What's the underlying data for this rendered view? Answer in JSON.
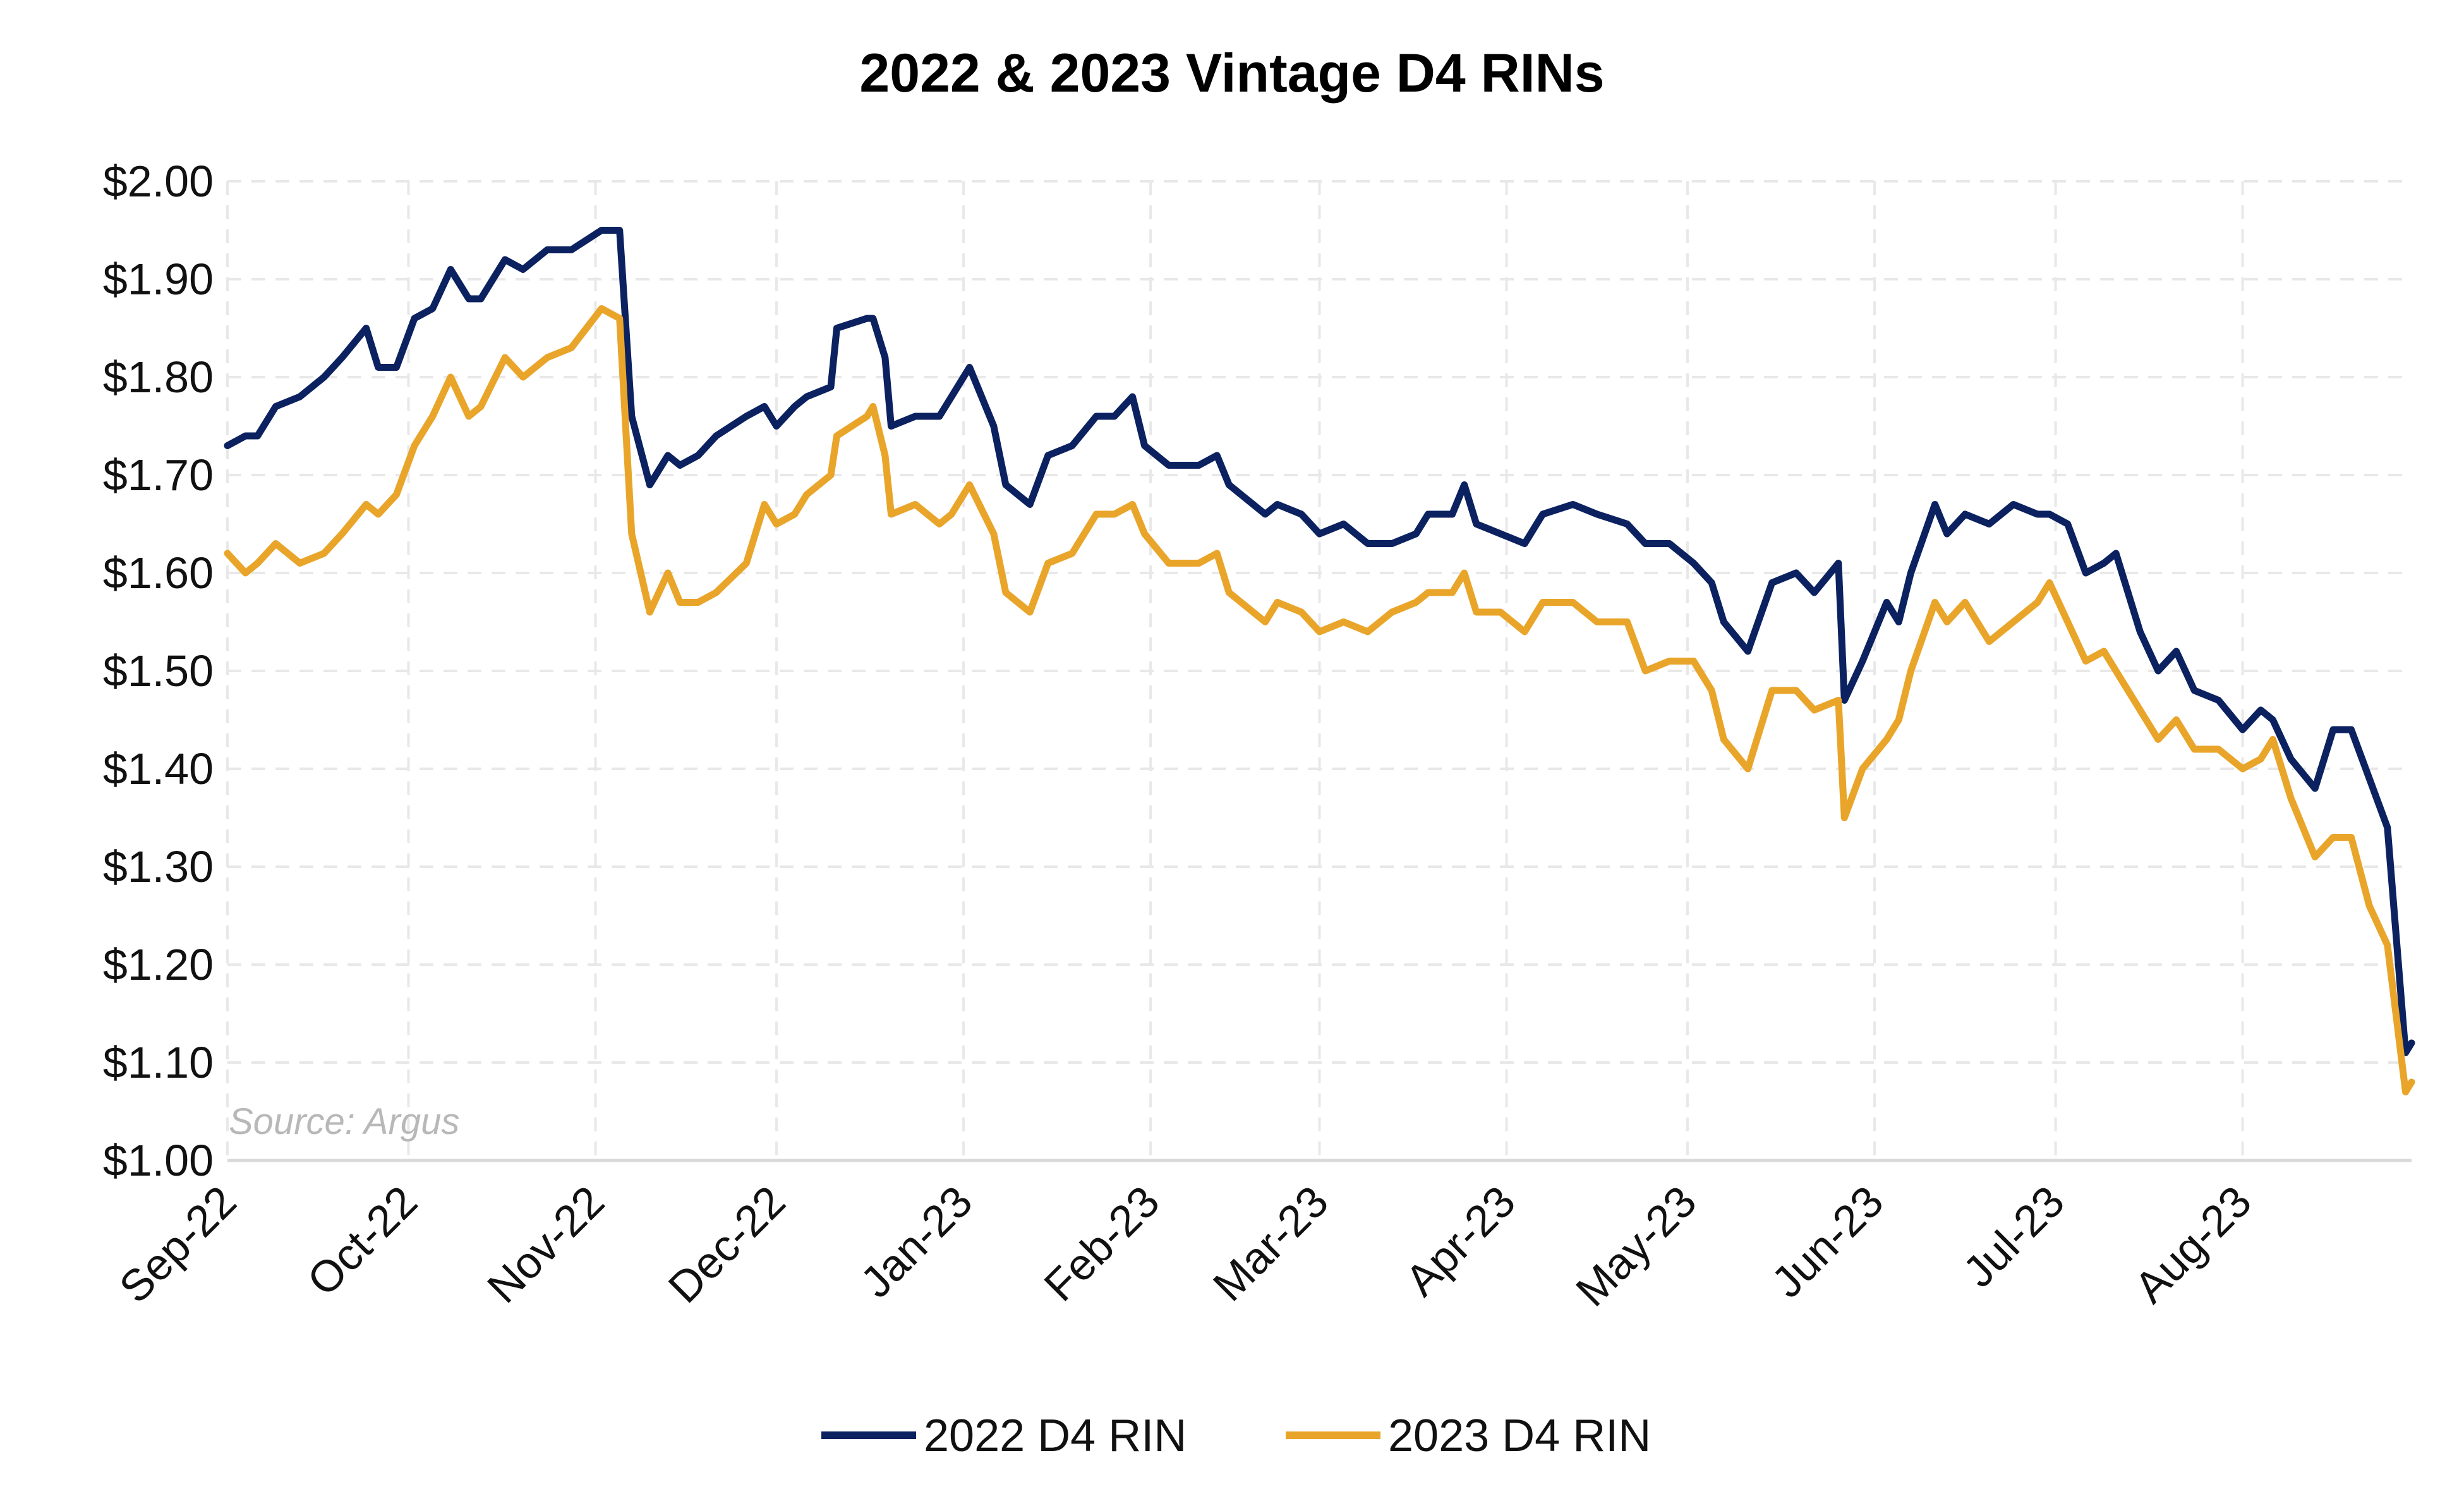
{
  "chart_data": {
    "type": "line",
    "title": "2022 & 2023 Vintage D4 RINs",
    "source_note": "Source: Argus",
    "xlabel": "",
    "ylabel": "",
    "ylim": [
      1.0,
      2.0
    ],
    "yticks": [
      "$1.00",
      "$1.10",
      "$1.20",
      "$1.30",
      "$1.40",
      "$1.50",
      "$1.60",
      "$1.70",
      "$1.80",
      "$1.90",
      "$2.00"
    ],
    "xticks": [
      {
        "date": "2022-09-01",
        "label": "Sep-22"
      },
      {
        "date": "2022-10-01",
        "label": "Oct-22"
      },
      {
        "date": "2022-11-01",
        "label": "Nov-22"
      },
      {
        "date": "2022-12-01",
        "label": "Dec-22"
      },
      {
        "date": "2023-01-01",
        "label": "Jan-23"
      },
      {
        "date": "2023-02-01",
        "label": "Feb-23"
      },
      {
        "date": "2023-03-01",
        "label": "Mar-23"
      },
      {
        "date": "2023-04-01",
        "label": "Apr-23"
      },
      {
        "date": "2023-05-01",
        "label": "May-23"
      },
      {
        "date": "2023-06-01",
        "label": "Jun-23"
      },
      {
        "date": "2023-07-01",
        "label": "Jul-23"
      },
      {
        "date": "2023-08-01",
        "label": "Aug-23"
      }
    ],
    "xlim": [
      "2022-09-01",
      "2023-08-29"
    ],
    "grid": true,
    "legend_position": "bottom",
    "x": [
      "2022-09-01",
      "2022-09-04",
      "2022-09-06",
      "2022-09-09",
      "2022-09-13",
      "2022-09-17",
      "2022-09-20",
      "2022-09-24",
      "2022-09-26",
      "2022-09-29",
      "2022-10-02",
      "2022-10-05",
      "2022-10-08",
      "2022-10-11",
      "2022-10-13",
      "2022-10-17",
      "2022-10-20",
      "2022-10-24",
      "2022-10-28",
      "2022-11-02",
      "2022-11-05",
      "2022-11-07",
      "2022-11-10",
      "2022-11-13",
      "2022-11-15",
      "2022-11-18",
      "2022-11-21",
      "2022-11-26",
      "2022-11-29",
      "2022-12-01",
      "2022-12-04",
      "2022-12-06",
      "2022-12-10",
      "2022-12-11",
      "2022-12-16",
      "2022-12-17",
      "2022-12-19",
      "2022-12-20",
      "2022-12-24",
      "2022-12-28",
      "2022-12-30",
      "2023-01-02",
      "2023-01-06",
      "2023-01-08",
      "2023-01-12",
      "2023-01-15",
      "2023-01-19",
      "2023-01-23",
      "2023-01-26",
      "2023-01-29",
      "2023-01-31",
      "2023-02-04",
      "2023-02-09",
      "2023-02-12",
      "2023-02-14",
      "2023-02-20",
      "2023-02-22",
      "2023-02-26",
      "2023-03-01",
      "2023-03-05",
      "2023-03-09",
      "2023-03-13",
      "2023-03-17",
      "2023-03-19",
      "2023-03-23",
      "2023-03-25",
      "2023-03-27",
      "2023-03-31",
      "2023-04-04",
      "2023-04-07",
      "2023-04-12",
      "2023-04-16",
      "2023-04-21",
      "2023-04-24",
      "2023-04-28",
      "2023-05-02",
      "2023-05-05",
      "2023-05-07",
      "2023-05-11",
      "2023-05-15",
      "2023-05-19",
      "2023-05-22",
      "2023-05-26",
      "2023-05-27",
      "2023-05-30",
      "2023-06-03",
      "2023-06-05",
      "2023-06-07",
      "2023-06-11",
      "2023-06-13",
      "2023-06-16",
      "2023-06-20",
      "2023-06-24",
      "2023-06-28",
      "2023-06-30",
      "2023-07-03",
      "2023-07-06",
      "2023-07-09",
      "2023-07-11",
      "2023-07-15",
      "2023-07-18",
      "2023-07-21",
      "2023-07-24",
      "2023-07-28",
      "2023-08-01",
      "2023-08-04",
      "2023-08-06",
      "2023-08-09",
      "2023-08-13",
      "2023-08-16",
      "2023-08-19",
      "2023-08-22",
      "2023-08-25",
      "2023-08-28",
      "2023-08-29"
    ],
    "series": [
      {
        "name": "2022 D4 RIN",
        "color": "#0b2160",
        "values": [
          1.73,
          1.74,
          1.74,
          1.77,
          1.78,
          1.8,
          1.82,
          1.85,
          1.81,
          1.81,
          1.86,
          1.87,
          1.91,
          1.88,
          1.88,
          1.92,
          1.91,
          1.93,
          1.93,
          1.95,
          1.95,
          1.76,
          1.69,
          1.72,
          1.71,
          1.72,
          1.74,
          1.76,
          1.77,
          1.75,
          1.77,
          1.78,
          1.79,
          1.85,
          1.86,
          1.86,
          1.82,
          1.75,
          1.76,
          1.76,
          1.78,
          1.81,
          1.75,
          1.69,
          1.67,
          1.72,
          1.73,
          1.76,
          1.76,
          1.78,
          1.73,
          1.71,
          1.71,
          1.72,
          1.69,
          1.66,
          1.67,
          1.66,
          1.64,
          1.65,
          1.63,
          1.63,
          1.64,
          1.66,
          1.66,
          1.69,
          1.65,
          1.64,
          1.63,
          1.66,
          1.67,
          1.66,
          1.65,
          1.63,
          1.63,
          1.61,
          1.59,
          1.55,
          1.52,
          1.59,
          1.6,
          1.58,
          1.61,
          1.47,
          1.51,
          1.57,
          1.55,
          1.6,
          1.67,
          1.64,
          1.66,
          1.65,
          1.67,
          1.66,
          1.66,
          1.65,
          1.6,
          1.61,
          1.62,
          1.54,
          1.5,
          1.52,
          1.48,
          1.47,
          1.44,
          1.46,
          1.45,
          1.41,
          1.38,
          1.44,
          1.44,
          1.39,
          1.34,
          1.11,
          1.12
        ]
      },
      {
        "name": "2023 D4 RIN",
        "color": "#e9a52a",
        "values": [
          1.62,
          1.6,
          1.61,
          1.63,
          1.61,
          1.62,
          1.64,
          1.67,
          1.66,
          1.68,
          1.73,
          1.76,
          1.8,
          1.76,
          1.77,
          1.82,
          1.8,
          1.82,
          1.83,
          1.87,
          1.86,
          1.64,
          1.56,
          1.6,
          1.57,
          1.57,
          1.58,
          1.61,
          1.67,
          1.65,
          1.66,
          1.68,
          1.7,
          1.74,
          1.76,
          1.77,
          1.72,
          1.66,
          1.67,
          1.65,
          1.66,
          1.69,
          1.64,
          1.58,
          1.56,
          1.61,
          1.62,
          1.66,
          1.66,
          1.67,
          1.64,
          1.61,
          1.61,
          1.62,
          1.58,
          1.55,
          1.57,
          1.56,
          1.54,
          1.55,
          1.54,
          1.56,
          1.57,
          1.58,
          1.58,
          1.6,
          1.56,
          1.56,
          1.54,
          1.57,
          1.57,
          1.55,
          1.55,
          1.5,
          1.51,
          1.51,
          1.48,
          1.43,
          1.4,
          1.48,
          1.48,
          1.46,
          1.47,
          1.35,
          1.4,
          1.43,
          1.45,
          1.5,
          1.57,
          1.55,
          1.57,
          1.53,
          1.55,
          1.57,
          1.59,
          1.55,
          1.51,
          1.52,
          1.5,
          1.46,
          1.43,
          1.45,
          1.42,
          1.42,
          1.4,
          1.41,
          1.43,
          1.37,
          1.31,
          1.33,
          1.33,
          1.26,
          1.22,
          1.07,
          1.08
        ]
      }
    ]
  }
}
